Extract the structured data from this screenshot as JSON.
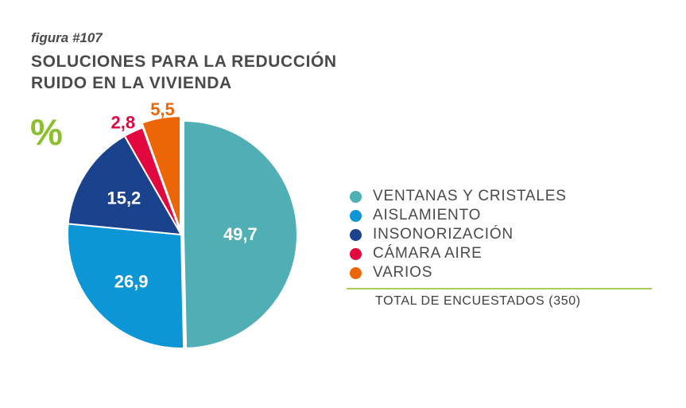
{
  "figure_number": "figura #107",
  "title_line1": "SOLUCIONES PARA LA REDUCCIÓN",
  "title_line2": "RUIDO EN LA VIVIENDA",
  "unit_symbol": "%",
  "total_label": "TOTAL DE ENCUESTADOS (350)",
  "chart_data": {
    "type": "pie",
    "title": "SOLUCIONES PARA LA REDUCCIÓN RUIDO EN LA VIVIENDA",
    "unit": "%",
    "categories": [
      "VENTANAS Y CRISTALES",
      "AISLAMIENTO",
      "INSONORIZACIÓN",
      "CÁMARA AIRE",
      "VARIOS"
    ],
    "values": [
      49.7,
      26.9,
      15.2,
      2.8,
      5.5
    ],
    "value_labels": [
      "49,7",
      "26,9",
      "15,2",
      "2,8",
      "5,5"
    ],
    "colors": [
      "#4fafb5",
      "#0c96d6",
      "#1b428c",
      "#e2073f",
      "#ec6608"
    ],
    "label_colors": [
      "#ffffff",
      "#ffffff",
      "#ffffff",
      "#e2073f",
      "#ec6608"
    ],
    "label_position": [
      "inside",
      "inside",
      "inside",
      "outside",
      "outside"
    ],
    "start_angle": "12 o'clock",
    "direction": "clockwise",
    "legend_position": "right",
    "total_respondents": 350
  }
}
